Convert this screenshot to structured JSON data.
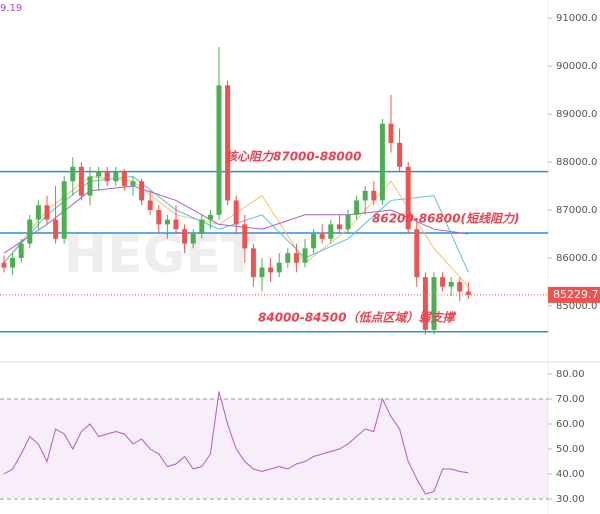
{
  "corner_text": "9.19",
  "watermark": "HEGET",
  "chart_data": [
    {
      "type": "candlestick",
      "open": [
        85900,
        85800,
        86000,
        86300,
        86800,
        87100,
        86800,
        86400,
        87600,
        87900,
        87300,
        87700,
        87800,
        87600,
        87800,
        87500,
        87600,
        87200,
        87000,
        86700,
        86800,
        86600,
        86300,
        86500,
        86800,
        86900,
        89600,
        87200,
        86700,
        86200,
        85600,
        85800,
        85700,
        85900,
        86100,
        85900,
        86200,
        86500,
        86400,
        86700,
        86600,
        86900,
        87200,
        87400,
        87200,
        88800,
        88400,
        87900,
        86600,
        85600,
        84500,
        85600,
        85400,
        85500,
        85300
      ],
      "high": [
        86050,
        86100,
        86400,
        86900,
        87200,
        87300,
        87500,
        87700,
        88100,
        88000,
        87900,
        87900,
        87900,
        87900,
        87850,
        87700,
        87650,
        87400,
        87100,
        86900,
        87100,
        86700,
        86600,
        86900,
        87000,
        90400,
        89700,
        87300,
        86900,
        86300,
        86000,
        86000,
        86100,
        86200,
        86300,
        86400,
        86600,
        86700,
        86800,
        86900,
        87000,
        87300,
        87500,
        87600,
        88900,
        89400,
        88700,
        88000,
        86800,
        85700,
        85700,
        85700,
        85600,
        85600,
        85500
      ],
      "low": [
        85700,
        85650,
        85900,
        86200,
        86600,
        86700,
        86300,
        86300,
        87300,
        87200,
        87100,
        87400,
        87500,
        87500,
        87400,
        87300,
        87100,
        86900,
        86500,
        86400,
        86500,
        86100,
        86200,
        86400,
        86600,
        86800,
        87100,
        86500,
        85900,
        85400,
        85300,
        85500,
        85600,
        85800,
        85700,
        85800,
        86100,
        86300,
        86300,
        86500,
        86500,
        86800,
        86900,
        87100,
        87100,
        88200,
        87800,
        86500,
        85400,
        84400,
        84400,
        85300,
        85200,
        85100,
        85150
      ],
      "close": [
        85800,
        86000,
        86300,
        86800,
        87100,
        86800,
        86400,
        87600,
        87900,
        87300,
        87700,
        87800,
        87600,
        87800,
        87500,
        87600,
        87200,
        87000,
        86700,
        86800,
        86600,
        86300,
        86500,
        86800,
        86900,
        89600,
        87200,
        86700,
        86200,
        85600,
        85800,
        85700,
        85900,
        86100,
        85900,
        86200,
        86500,
        86400,
        86700,
        86600,
        86900,
        87200,
        87400,
        87200,
        88800,
        88400,
        87900,
        86600,
        85600,
        84500,
        85600,
        85400,
        85500,
        85300,
        85229.7
      ],
      "up_color": "#4caf50",
      "down_color": "#ef5350",
      "ma_x": [
        0,
        5,
        10,
        15,
        20,
        25,
        30,
        35,
        40,
        45,
        50,
        54
      ],
      "ma": [
        {
          "color": "#f5c26b",
          "values": [
            85900,
            87000,
            87700,
            87600,
            86900,
            86700,
            87300,
            85900,
            86600,
            87600,
            86200,
            85400
          ]
        },
        {
          "color": "#5bc0de",
          "values": [
            85900,
            86900,
            87600,
            87700,
            87000,
            86600,
            86900,
            86000,
            86400,
            87200,
            87300,
            85700
          ]
        },
        {
          "color": "#b05cc4",
          "values": [
            86100,
            86700,
            87400,
            87500,
            87200,
            86700,
            86600,
            86900,
            86900,
            87000,
            86600,
            86500
          ]
        }
      ],
      "levels": [
        87800,
        86520,
        84460
      ],
      "level_color": "#2a8fe0",
      "annotations": [
        "核心阻力87000-88000",
        "86200-86800(短线阻力)",
        "84000-84500（低点区域）弱支撑"
      ],
      "ylim": [
        83830,
        91380
      ],
      "yticks": [
        {
          "value": 91000,
          "label": "91000.0"
        },
        {
          "value": 90000,
          "label": "90000.0"
        },
        {
          "value": 89000,
          "label": "89000.0"
        },
        {
          "value": 88000,
          "label": "88000.0"
        },
        {
          "value": 87000,
          "label": "87000.0"
        },
        {
          "value": 86000,
          "label": "86000.0"
        },
        {
          "value": 85000,
          "label": "85000.0"
        }
      ]
    },
    {
      "type": "oscillator",
      "values": [
        40,
        42,
        48,
        55,
        52,
        45,
        58,
        56,
        50,
        57,
        60,
        55,
        56,
        57,
        56,
        52,
        54,
        50,
        48,
        43,
        44,
        47,
        42,
        43,
        48,
        73,
        60,
        50,
        45,
        42,
        41,
        42,
        43,
        42,
        44,
        45,
        47,
        48,
        49,
        50,
        52,
        55,
        58,
        57,
        70,
        63,
        58,
        45,
        38,
        32,
        33,
        42,
        42,
        41,
        40.5
      ],
      "color": "#b05cc4",
      "band": [
        30,
        70
      ],
      "ylim": [
        24,
        84.8
      ],
      "yticks": [
        {
          "value": 80,
          "label": "80.00"
        },
        {
          "value": 70,
          "label": "70.00"
        },
        {
          "value": 60,
          "label": "60.00"
        },
        {
          "value": 50,
          "label": "50.00"
        },
        {
          "value": 40,
          "label": "40.00"
        },
        {
          "value": 30,
          "label": "30.00"
        }
      ]
    }
  ]
}
